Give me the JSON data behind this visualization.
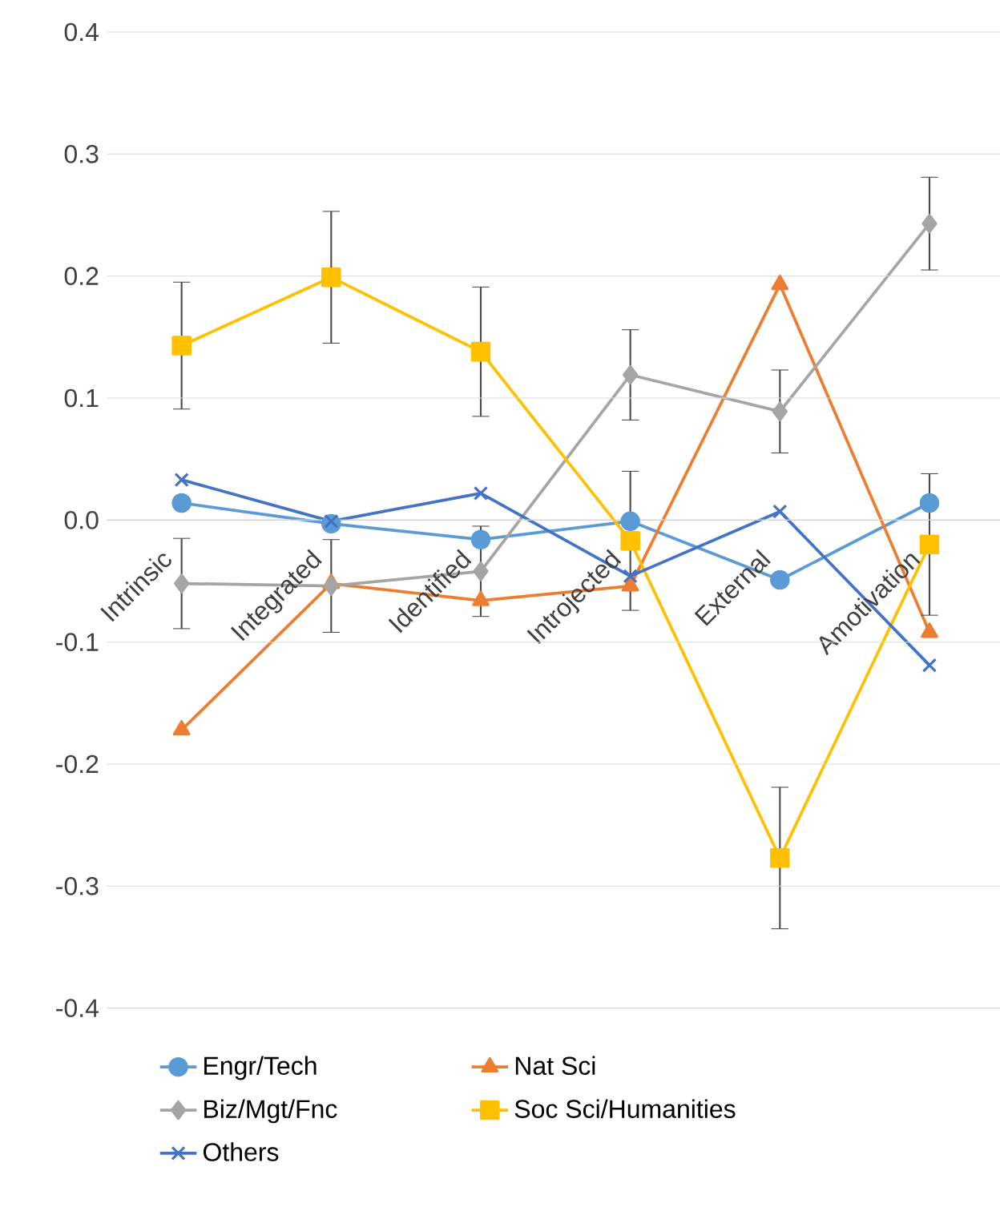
{
  "chart_data": {
    "type": "line",
    "categories": [
      "Intrinsic",
      "Integrated",
      "Identified",
      "Introjected",
      "External",
      "Amotivation"
    ],
    "series": [
      {
        "name": "Engr/Tech",
        "color": "#5b9bd5",
        "marker": "circle",
        "values": [
          0.014,
          -0.003,
          -0.016,
          -0.001,
          -0.049,
          0.014
        ]
      },
      {
        "name": "Nat Sci",
        "color": "#ed7d31",
        "marker": "triangle",
        "values": [
          -0.172,
          -0.052,
          -0.066,
          -0.054,
          0.193,
          -0.092
        ]
      },
      {
        "name": "Biz/Mgt/Fnc",
        "color": "#a5a5a5",
        "marker": "diamond",
        "values": [
          -0.052,
          -0.054,
          -0.042,
          0.119,
          0.089,
          0.243
        ],
        "errors": [
          0.037,
          0.038,
          0.037,
          0.037,
          0.034,
          0.038
        ]
      },
      {
        "name": "Soc Sci/Humanities",
        "color": "#ffc000",
        "marker": "square",
        "values": [
          0.143,
          0.199,
          0.138,
          -0.017,
          -0.277,
          -0.02
        ],
        "errors": [
          0.052,
          0.054,
          0.053,
          0.057,
          0.058,
          0.058
        ]
      },
      {
        "name": "Others",
        "color": "#4472c4",
        "marker": "cross",
        "values": [
          0.033,
          -0.001,
          0.022,
          -0.046,
          0.007,
          -0.119
        ]
      }
    ],
    "ylim": [
      -0.4,
      0.4
    ],
    "yticks": [
      -0.4,
      -0.3,
      -0.2,
      -0.1,
      {
        "value": 0,
        "label": "0.0"
      },
      0.1,
      0.2,
      0.3,
      0.4
    ],
    "grid": "y",
    "legend": "bottom"
  }
}
